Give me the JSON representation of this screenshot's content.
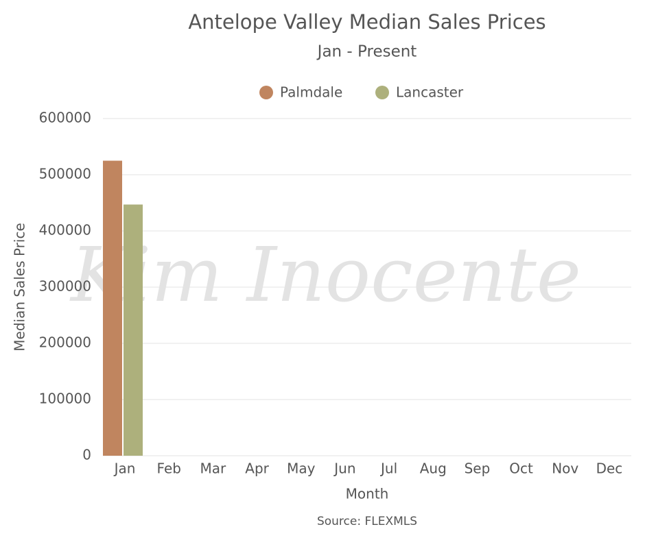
{
  "chart_data": {
    "type": "bar",
    "title": "Antelope Valley Median Sales Prices",
    "subtitle": "Jan - Present",
    "x_label": "Month",
    "y_label": "Median Sales Price",
    "source": "Source: FLEXMLS",
    "watermark": "Kim Inocente",
    "categories": [
      "Jan",
      "Feb",
      "Mar",
      "Apr",
      "May",
      "Jun",
      "Jul",
      "Aug",
      "Sep",
      "Oct",
      "Nov",
      "Dec"
    ],
    "series": [
      {
        "name": "Palmdale",
        "color": "#c0855f",
        "values": [
          525000,
          null,
          null,
          null,
          null,
          null,
          null,
          null,
          null,
          null,
          null,
          null
        ]
      },
      {
        "name": "Lancaster",
        "color": "#adb07c",
        "values": [
          447000,
          null,
          null,
          null,
          null,
          null,
          null,
          null,
          null,
          null,
          null,
          null
        ]
      }
    ],
    "ylim": [
      0,
      600000
    ],
    "yticks": [
      0,
      100000,
      200000,
      300000,
      400000,
      500000,
      600000
    ],
    "grid": true,
    "legend": "top"
  }
}
